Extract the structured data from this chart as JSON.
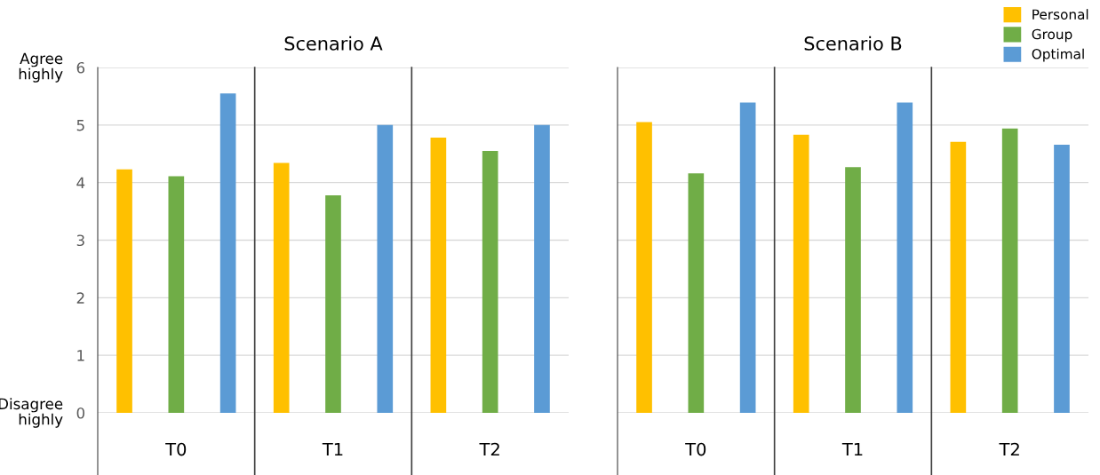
{
  "chart_data": [
    {
      "type": "bar",
      "title": "Scenario A",
      "categories": [
        "T0",
        "T1",
        "T2"
      ],
      "series": [
        {
          "name": "Personal",
          "color": "#ffc000",
          "values": [
            4.23,
            4.34,
            4.78
          ]
        },
        {
          "name": "Group",
          "color": "#70ad47",
          "values": [
            4.11,
            3.78,
            4.55
          ]
        },
        {
          "name": "Optimal",
          "color": "#5b9bd5",
          "values": [
            5.55,
            5.0,
            5.0
          ]
        }
      ],
      "ylim": [
        0,
        6
      ],
      "yticks": [
        0,
        1,
        2,
        3,
        4,
        5,
        6
      ],
      "grid": "y",
      "legend": "top right",
      "annotations": [
        "Agree\nhighly",
        "Disagree\nhighly"
      ]
    },
    {
      "type": "bar",
      "title": "Scenario B",
      "categories": [
        "T0",
        "T1",
        "T2"
      ],
      "series": [
        {
          "color": "#ffc000",
          "values": [
            5.05,
            4.83,
            4.71
          ]
        },
        {
          "color": "#70ad47",
          "values": [
            4.16,
            4.27,
            4.94
          ]
        },
        {
          "color": "#5b9bd5",
          "values": [
            5.39,
            5.39,
            4.66
          ]
        }
      ],
      "ylim": [
        0,
        6
      ],
      "yticks": [
        0,
        1,
        2,
        3,
        4,
        5,
        6
      ],
      "grid": "y",
      "tick_labels": "x"
    }
  ]
}
